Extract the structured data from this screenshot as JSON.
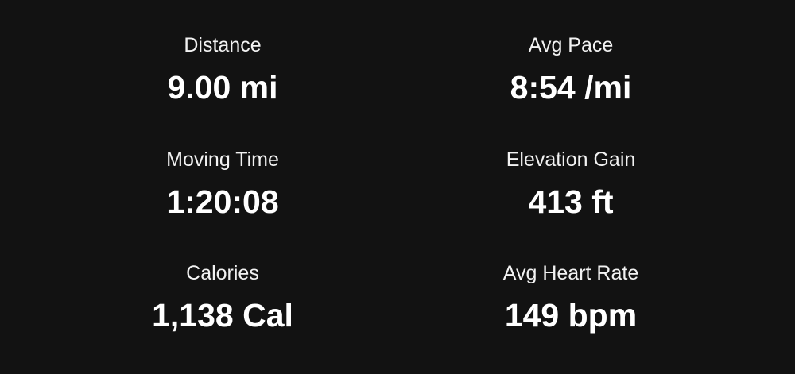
{
  "stats": [
    {
      "label": "Distance",
      "value": "9.00 mi"
    },
    {
      "label": "Avg Pace",
      "value": "8:54 /mi"
    },
    {
      "label": "Moving Time",
      "value": "1:20:08"
    },
    {
      "label": "Elevation Gain",
      "value": "413 ft"
    },
    {
      "label": "Calories",
      "value": "1,138 Cal"
    },
    {
      "label": "Avg Heart Rate",
      "value": "149 bpm"
    }
  ]
}
